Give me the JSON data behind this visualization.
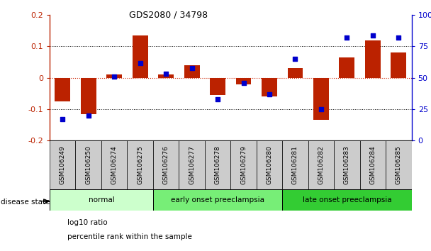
{
  "title": "GDS2080 / 34798",
  "samples": [
    "GSM106249",
    "GSM106250",
    "GSM106274",
    "GSM106275",
    "GSM106276",
    "GSM106277",
    "GSM106278",
    "GSM106279",
    "GSM106280",
    "GSM106281",
    "GSM106282",
    "GSM106283",
    "GSM106284",
    "GSM106285"
  ],
  "log10_ratio": [
    -0.075,
    -0.115,
    0.01,
    0.135,
    0.01,
    0.04,
    -0.055,
    -0.02,
    -0.06,
    0.03,
    -0.135,
    0.065,
    0.12,
    0.08
  ],
  "percentile_rank": [
    17,
    20,
    51,
    62,
    53,
    58,
    33,
    46,
    37,
    65,
    25,
    82,
    84,
    82
  ],
  "bar_color": "#bb2200",
  "dot_color": "#0000cc",
  "zero_line_color": "#cc2200",
  "groups": [
    {
      "label": "normal",
      "start": 0,
      "end": 4,
      "color": "#ccffcc"
    },
    {
      "label": "early onset preeclampsia",
      "start": 4,
      "end": 9,
      "color": "#77ee77"
    },
    {
      "label": "late onset preeclampsia",
      "start": 9,
      "end": 14,
      "color": "#33cc33"
    }
  ],
  "ylim_left": [
    -0.2,
    0.2
  ],
  "ylim_right": [
    0,
    100
  ],
  "yticks_left": [
    -0.2,
    -0.1,
    0,
    0.1,
    0.2
  ],
  "ytick_labels_left": [
    "-0.2",
    "-0.1",
    "0",
    "0.1",
    "0.2"
  ],
  "yticks_right": [
    0,
    25,
    50,
    75,
    100
  ],
  "ytick_labels_right": [
    "0",
    "25",
    "50",
    "75",
    "100%"
  ],
  "xticklabel_bg": "#cccccc",
  "background_color": "#ffffff",
  "legend_items": [
    {
      "color": "#bb2200",
      "label": "log10 ratio"
    },
    {
      "color": "#0000cc",
      "label": "percentile rank within the sample"
    }
  ]
}
